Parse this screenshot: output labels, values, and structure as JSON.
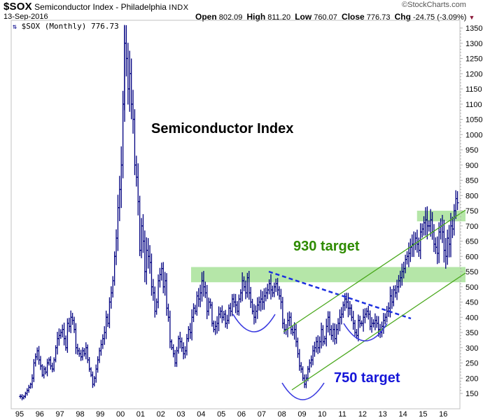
{
  "header": {
    "symbol": "$SOX",
    "name": "Semiconductor Index - Philadelphia",
    "exchange": "INDX",
    "date": "13-Sep-2016",
    "brand": "©StockCharts.com",
    "open_label": "Open",
    "open": "802.09",
    "high_label": "High",
    "high": "811.20",
    "low_label": "Low",
    "low": "760.07",
    "close_label": "Close",
    "close": "776.73",
    "chg_label": "Chg",
    "chg": "-24.75 (-3.09%)",
    "chg_icon": "down-triangle-icon"
  },
  "legend": {
    "icon": "ohlc-bars-icon",
    "text": "$SOX (Monthly) 776.73"
  },
  "colors": {
    "bars": "#000080",
    "band": "#b5e6a8",
    "channel": "#4aa81c",
    "trend": "#1c2fe0",
    "arc": "#3a3ae0",
    "target_green": "#2e8b00",
    "target_blue": "#1515d8"
  },
  "annotations": {
    "title": "Semiconductor Index",
    "target_930": "930 target",
    "target_750": "750 target"
  },
  "chart_data": {
    "type": "ohlc",
    "title": "$SOX Semiconductor Index - Philadelphia INDX (Monthly)",
    "xlabel": "",
    "ylabel": "",
    "ylim": [
      130,
      1380
    ],
    "y_ticks": [
      150,
      200,
      250,
      300,
      350,
      400,
      450,
      500,
      550,
      600,
      650,
      700,
      750,
      800,
      850,
      900,
      950,
      1000,
      1050,
      1100,
      1150,
      1200,
      1250,
      1300,
      1350
    ],
    "x_ticks": [
      "95",
      "96",
      "97",
      "98",
      "99",
      "00",
      "01",
      "02",
      "03",
      "04",
      "05",
      "06",
      "07",
      "08",
      "09",
      "10",
      "11",
      "12",
      "13",
      "14",
      "15",
      "16"
    ],
    "grid": false,
    "axis_position": "right",
    "last_close": 776.73,
    "resistance_bands": [
      [
        515,
        565
      ],
      [
        715,
        750
      ]
    ],
    "downtrend_line": [
      [
        "2007.6",
        555
      ],
      [
        "2014.4",
        400
      ]
    ],
    "channel_lines": [
      {
        "from": [
          "2008.4",
          330
        ],
        "to": [
          "2016.9",
          745
        ]
      },
      {
        "from": [
          "2009.0",
          160
        ],
        "to": [
          "2016.9",
          545
        ]
      }
    ],
    "targets": [
      930,
      750
    ],
    "monthly_closes": {
      "1995": [
        140,
        135,
        140,
        150,
        160,
        170,
        180,
        200,
        250,
        270,
        290,
        260
      ],
      "1996": [
        240,
        210,
        230,
        220,
        250,
        260,
        240,
        230,
        260,
        300,
        330,
        340
      ],
      "1997": [
        350,
        360,
        330,
        300,
        380,
        370,
        400,
        390,
        360,
        300,
        290,
        280
      ],
      "1998": [
        270,
        290,
        280,
        300,
        260,
        230,
        210,
        180,
        200,
        230,
        260,
        290
      ],
      "1999": [
        310,
        330,
        350,
        400,
        380,
        450,
        480,
        520,
        600,
        660,
        760,
        820
      ],
      "2000": [
        900,
        1100,
        1300,
        1250,
        1150,
        1200,
        1100,
        1050,
        900,
        860,
        780,
        620
      ],
      "2001": [
        700,
        650,
        550,
        620,
        600,
        580,
        500,
        480,
        420,
        450,
        520,
        540
      ],
      "2002": [
        560,
        500,
        520,
        430,
        400,
        320,
        300,
        280,
        250,
        290,
        330,
        320
      ],
      "2003": [
        300,
        280,
        290,
        330,
        360,
        350,
        400,
        430,
        420,
        470,
        460,
        480
      ],
      "2004": [
        520,
        500,
        480,
        420,
        450,
        440,
        380,
        360,
        370,
        380,
        410,
        420
      ],
      "2005": [
        400,
        410,
        380,
        390,
        430,
        420,
        460,
        450,
        440,
        420,
        460,
        480
      ],
      "2006": [
        520,
        500,
        480,
        530,
        480,
        450,
        420,
        400,
        420,
        440,
        450,
        460
      ],
      "2007": [
        450,
        470,
        480,
        490,
        510,
        490,
        480,
        500,
        510,
        490,
        470,
        450
      ],
      "2008": [
        380,
        360,
        360,
        390,
        400,
        360,
        350,
        360,
        320,
        280,
        240,
        230
      ],
      "2009": [
        200,
        180,
        200,
        230,
        250,
        260,
        290,
        300,
        320,
        300,
        320,
        360
      ],
      "2010": [
        320,
        330,
        370,
        400,
        360,
        340,
        360,
        330,
        360,
        380,
        400,
        410
      ],
      "2011": [
        440,
        460,
        450,
        430,
        430,
        400,
        380,
        350,
        340,
        390,
        380,
        380
      ],
      "2012": [
        400,
        410,
        420,
        410,
        370,
        380,
        380,
        390,
        380,
        360,
        350,
        370
      ],
      "2013": [
        390,
        400,
        420,
        430,
        470,
        450,
        490,
        480,
        500,
        520,
        530,
        550
      ],
      "2014": [
        560,
        590,
        600,
        610,
        630,
        640,
        640,
        660,
        640,
        620,
        680,
        690
      ],
      "2015": [
        710,
        720,
        700,
        700,
        720,
        680,
        640,
        630,
        610,
        680,
        700,
        680
      ],
      "2016": [
        620,
        600,
        660,
        640,
        700,
        690,
        750,
        790,
        776
      ]
    }
  }
}
